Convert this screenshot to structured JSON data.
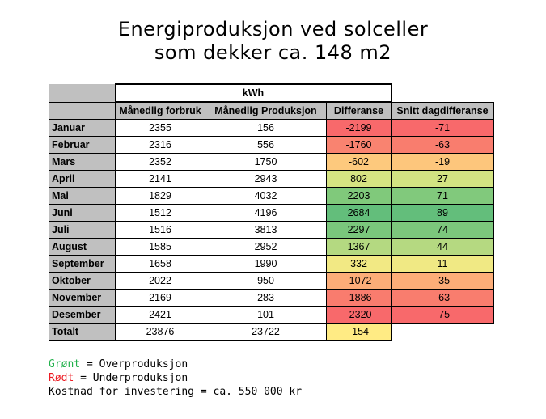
{
  "title_line1": "Energiproduksjon ved solceller",
  "title_line2": "som dekker ca. 148 m2",
  "table": {
    "unit_header": "kWh",
    "columns": [
      "Månedlig forbruk",
      "Månedlig Produksjon",
      "Differanse",
      "Snitt dagdifferanse"
    ],
    "rows": [
      {
        "month": "Januar",
        "forbruk": "2355",
        "produksjon": "156",
        "differanse": "-2199",
        "snitt": "-71",
        "diff_color": "#f8696b",
        "snitt_color": "#f8696b"
      },
      {
        "month": "Februar",
        "forbruk": "2316",
        "produksjon": "556",
        "differanse": "-1760",
        "snitt": "-63",
        "diff_color": "#f98370",
        "snitt_color": "#f97d6e"
      },
      {
        "month": "Mars",
        "forbruk": "2352",
        "produksjon": "1750",
        "differanse": "-602",
        "snitt": "-19",
        "diff_color": "#fdc97d",
        "snitt_color": "#fdc67c"
      },
      {
        "month": "April",
        "forbruk": "2141",
        "produksjon": "2943",
        "differanse": "802",
        "snitt": "27",
        "diff_color": "#d6e482",
        "snitt_color": "#d3e382"
      },
      {
        "month": "Mai",
        "forbruk": "1829",
        "produksjon": "4032",
        "differanse": "2203",
        "snitt": "71",
        "diff_color": "#80c97b",
        "snitt_color": "#81c97c"
      },
      {
        "month": "Juni",
        "forbruk": "1512",
        "produksjon": "4196",
        "differanse": "2684",
        "snitt": "89",
        "diff_color": "#63be7b",
        "snitt_color": "#63be7b"
      },
      {
        "month": "Juli",
        "forbruk": "1516",
        "produksjon": "3813",
        "differanse": "2297",
        "snitt": "74",
        "diff_color": "#7ac77c",
        "snitt_color": "#7cc77c"
      },
      {
        "month": "August",
        "forbruk": "1585",
        "produksjon": "2952",
        "differanse": "1367",
        "snitt": "44",
        "diff_color": "#b4d981",
        "snitt_color": "#b5d981"
      },
      {
        "month": "September",
        "forbruk": "1658",
        "produksjon": "1990",
        "differanse": "332",
        "snitt": "11",
        "diff_color": "#f2e984",
        "snitt_color": "#f0e984"
      },
      {
        "month": "Oktober",
        "forbruk": "2022",
        "produksjon": "950",
        "differanse": "-1072",
        "snitt": "-35",
        "diff_color": "#fcad78",
        "snitt_color": "#fcad78"
      },
      {
        "month": "November",
        "forbruk": "2169",
        "produksjon": "283",
        "differanse": "-1886",
        "snitt": "-63",
        "diff_color": "#f97c6e",
        "snitt_color": "#f97d6e"
      },
      {
        "month": "Desember",
        "forbruk": "2421",
        "produksjon": "101",
        "differanse": "-2320",
        "snitt": "-75",
        "diff_color": "#f8696b",
        "snitt_color": "#f8696b"
      }
    ],
    "total": {
      "label": "Totalt",
      "forbruk": "23876",
      "produksjon": "23722",
      "differanse": "-154",
      "diff_color": "#ffeb84"
    }
  },
  "legend": {
    "green_word": "Grønt",
    "green_rest": " = Overproduksjon",
    "green_color": "#22b14c",
    "red_word": "Rødt",
    "red_rest": " = Underproduksjon",
    "red_color": "#ed1c24",
    "cost_text": "Kostnad for investering = ca. 550 000 kr"
  }
}
